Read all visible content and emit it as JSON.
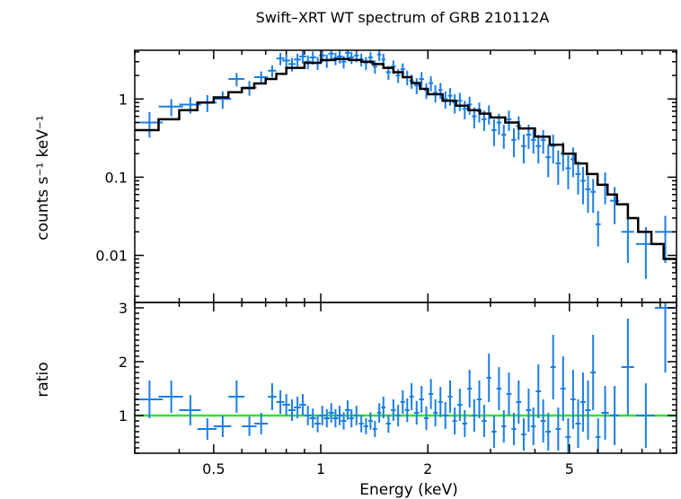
{
  "chart_data": {
    "type": "scatter",
    "title": "Swift–XRT WT spectrum of GRB 210112A",
    "xlabel": "Energy (keV)",
    "xscale": "log",
    "xlim": [
      0.3,
      10
    ],
    "x_ticks": [
      {
        "value": 0.5,
        "label": "0.5"
      },
      {
        "value": 1,
        "label": "1"
      },
      {
        "value": 2,
        "label": "2"
      },
      {
        "value": 5,
        "label": "5"
      }
    ],
    "panels": [
      {
        "name": "spectrum",
        "ylabel": "counts s⁻¹ keV⁻¹",
        "yscale": "log",
        "ylim": [
          0.0025,
          4.2
        ],
        "y_ticks": [
          {
            "value": 1,
            "label": "1"
          },
          {
            "value": 0.1,
            "label": "0.1"
          },
          {
            "value": 0.01,
            "label": "0.01"
          }
        ],
        "data_color": "#1a7ee6",
        "model_color": "#000000",
        "data": [
          [
            0.33,
            0.03,
            0.5,
            0.18
          ],
          [
            0.38,
            0.03,
            0.8,
            0.2
          ],
          [
            0.43,
            0.03,
            0.85,
            0.2
          ],
          [
            0.48,
            0.03,
            0.9,
            0.22
          ],
          [
            0.53,
            0.03,
            1.0,
            0.25
          ],
          [
            0.58,
            0.03,
            1.8,
            0.35
          ],
          [
            0.63,
            0.03,
            1.4,
            0.3
          ],
          [
            0.68,
            0.03,
            1.9,
            0.35
          ],
          [
            0.73,
            0.02,
            2.3,
            0.4
          ],
          [
            0.77,
            0.02,
            3.3,
            0.6
          ],
          [
            0.8,
            0.02,
            3.1,
            0.6
          ],
          [
            0.83,
            0.02,
            2.8,
            0.55
          ],
          [
            0.86,
            0.02,
            3.2,
            0.6
          ],
          [
            0.89,
            0.02,
            3.5,
            0.65
          ],
          [
            0.92,
            0.02,
            3.0,
            0.6
          ],
          [
            0.95,
            0.02,
            3.4,
            0.65
          ],
          [
            0.98,
            0.02,
            2.9,
            0.55
          ],
          [
            1.01,
            0.02,
            3.6,
            0.65
          ],
          [
            1.04,
            0.02,
            3.1,
            0.6
          ],
          [
            1.07,
            0.02,
            3.8,
            0.7
          ],
          [
            1.1,
            0.02,
            3.3,
            0.6
          ],
          [
            1.13,
            0.02,
            3.5,
            0.65
          ],
          [
            1.16,
            0.02,
            3.0,
            0.55
          ],
          [
            1.19,
            0.02,
            3.9,
            0.7
          ],
          [
            1.22,
            0.02,
            3.4,
            0.6
          ],
          [
            1.26,
            0.02,
            3.6,
            0.65
          ],
          [
            1.3,
            0.02,
            3.2,
            0.6
          ],
          [
            1.34,
            0.02,
            2.9,
            0.55
          ],
          [
            1.38,
            0.02,
            3.4,
            0.6
          ],
          [
            1.42,
            0.02,
            2.6,
            0.5
          ],
          [
            1.46,
            0.02,
            3.7,
            0.65
          ],
          [
            1.5,
            0.02,
            3.2,
            0.6
          ],
          [
            1.55,
            0.025,
            2.2,
            0.45
          ],
          [
            1.6,
            0.025,
            2.6,
            0.5
          ],
          [
            1.65,
            0.025,
            2.0,
            0.4
          ],
          [
            1.7,
            0.025,
            2.4,
            0.45
          ],
          [
            1.75,
            0.025,
            1.9,
            0.4
          ],
          [
            1.8,
            0.025,
            1.7,
            0.35
          ],
          [
            1.86,
            0.03,
            1.5,
            0.35
          ],
          [
            1.92,
            0.03,
            1.8,
            0.4
          ],
          [
            1.98,
            0.03,
            1.3,
            0.3
          ],
          [
            2.04,
            0.03,
            1.6,
            0.35
          ],
          [
            2.1,
            0.03,
            1.2,
            0.3
          ],
          [
            2.17,
            0.03,
            1.3,
            0.3
          ],
          [
            2.24,
            0.035,
            1.0,
            0.25
          ],
          [
            2.31,
            0.035,
            1.1,
            0.28
          ],
          [
            2.38,
            0.035,
            0.9,
            0.25
          ],
          [
            2.46,
            0.04,
            0.95,
            0.25
          ],
          [
            2.54,
            0.04,
            0.75,
            0.2
          ],
          [
            2.62,
            0.04,
            0.85,
            0.22
          ],
          [
            2.7,
            0.04,
            0.6,
            0.18
          ],
          [
            2.79,
            0.045,
            0.7,
            0.2
          ],
          [
            2.88,
            0.045,
            0.55,
            0.16
          ],
          [
            2.97,
            0.045,
            0.65,
            0.18
          ],
          [
            3.07,
            0.05,
            0.4,
            0.15
          ],
          [
            3.17,
            0.05,
            0.5,
            0.15
          ],
          [
            3.27,
            0.05,
            0.35,
            0.12
          ],
          [
            3.38,
            0.055,
            0.55,
            0.16
          ],
          [
            3.49,
            0.055,
            0.3,
            0.12
          ],
          [
            3.6,
            0.06,
            0.45,
            0.15
          ],
          [
            3.72,
            0.06,
            0.25,
            0.1
          ],
          [
            3.84,
            0.065,
            0.35,
            0.12
          ],
          [
            3.96,
            0.065,
            0.3,
            0.1
          ],
          [
            4.09,
            0.07,
            0.25,
            0.1
          ],
          [
            4.22,
            0.07,
            0.3,
            0.1
          ],
          [
            4.36,
            0.075,
            0.18,
            0.08
          ],
          [
            4.5,
            0.075,
            0.25,
            0.1
          ],
          [
            4.65,
            0.08,
            0.15,
            0.07
          ],
          [
            4.8,
            0.08,
            0.2,
            0.08
          ],
          [
            4.96,
            0.085,
            0.13,
            0.06
          ],
          [
            5.12,
            0.085,
            0.17,
            0.07
          ],
          [
            5.29,
            0.09,
            0.11,
            0.05
          ],
          [
            5.46,
            0.09,
            0.09,
            0.045
          ],
          [
            5.64,
            0.1,
            0.07,
            0.035
          ],
          [
            5.83,
            0.1,
            0.065,
            0.03
          ],
          [
            6.02,
            0.1,
            0.025,
            0.012
          ],
          [
            6.3,
            0.15,
            0.08,
            0.035
          ],
          [
            6.7,
            0.2,
            0.05,
            0.025
          ],
          [
            7.3,
            0.3,
            0.02,
            0.012
          ],
          [
            8.2,
            0.5,
            0.014,
            0.009
          ],
          [
            9.3,
            0.6,
            0.02,
            0.012
          ]
        ],
        "model": [
          [
            0.3,
            0.4
          ],
          [
            0.35,
            0.55
          ],
          [
            0.4,
            0.72
          ],
          [
            0.45,
            0.9
          ],
          [
            0.5,
            1.05
          ],
          [
            0.55,
            1.22
          ],
          [
            0.6,
            1.38
          ],
          [
            0.65,
            1.58
          ],
          [
            0.7,
            1.8
          ],
          [
            0.75,
            2.1
          ],
          [
            0.8,
            2.5
          ],
          [
            0.9,
            2.9
          ],
          [
            1.0,
            3.15
          ],
          [
            1.1,
            3.25
          ],
          [
            1.2,
            3.15
          ],
          [
            1.3,
            3.0
          ],
          [
            1.4,
            2.8
          ],
          [
            1.5,
            2.5
          ],
          [
            1.6,
            2.2
          ],
          [
            1.7,
            1.9
          ],
          [
            1.8,
            1.6
          ],
          [
            1.9,
            1.35
          ],
          [
            2.0,
            1.15
          ],
          [
            2.2,
            0.95
          ],
          [
            2.4,
            0.82
          ],
          [
            2.6,
            0.72
          ],
          [
            2.8,
            0.65
          ],
          [
            3.0,
            0.58
          ],
          [
            3.3,
            0.5
          ],
          [
            3.6,
            0.42
          ],
          [
            4.0,
            0.33
          ],
          [
            4.4,
            0.26
          ],
          [
            4.8,
            0.2
          ],
          [
            5.2,
            0.15
          ],
          [
            5.6,
            0.11
          ],
          [
            6.0,
            0.08
          ],
          [
            6.4,
            0.06
          ],
          [
            6.8,
            0.045
          ],
          [
            7.3,
            0.03
          ],
          [
            7.8,
            0.02
          ],
          [
            8.5,
            0.014
          ],
          [
            9.2,
            0.009
          ],
          [
            10,
            0.006
          ]
        ]
      },
      {
        "name": "ratio",
        "ylabel": "ratio",
        "yscale": "linear",
        "ylim": [
          0.3,
          3.1
        ],
        "y_ticks": [
          {
            "value": 1,
            "label": "1"
          },
          {
            "value": 2,
            "label": "2"
          },
          {
            "value": 3,
            "label": "3"
          }
        ],
        "reference_line": {
          "value": 1,
          "color": "#33e033"
        },
        "data": [
          [
            0.33,
            0.03,
            1.3,
            0.35
          ],
          [
            0.38,
            0.03,
            1.35,
            0.3
          ],
          [
            0.43,
            0.03,
            1.1,
            0.28
          ],
          [
            0.48,
            0.03,
            0.75,
            0.2
          ],
          [
            0.53,
            0.03,
            0.8,
            0.2
          ],
          [
            0.58,
            0.03,
            1.35,
            0.3
          ],
          [
            0.63,
            0.03,
            0.8,
            0.18
          ],
          [
            0.68,
            0.03,
            0.85,
            0.2
          ],
          [
            0.73,
            0.02,
            1.35,
            0.25
          ],
          [
            0.77,
            0.02,
            1.25,
            0.22
          ],
          [
            0.8,
            0.02,
            1.2,
            0.2
          ],
          [
            0.83,
            0.02,
            1.1,
            0.2
          ],
          [
            0.86,
            0.02,
            1.15,
            0.2
          ],
          [
            0.89,
            0.02,
            1.2,
            0.2
          ],
          [
            0.92,
            0.02,
            1.0,
            0.18
          ],
          [
            0.95,
            0.02,
            0.95,
            0.18
          ],
          [
            0.98,
            0.02,
            0.85,
            0.16
          ],
          [
            1.01,
            0.02,
            1.0,
            0.18
          ],
          [
            1.04,
            0.02,
            0.95,
            0.17
          ],
          [
            1.07,
            0.02,
            1.05,
            0.18
          ],
          [
            1.1,
            0.02,
            0.95,
            0.17
          ],
          [
            1.13,
            0.02,
            1.0,
            0.18
          ],
          [
            1.16,
            0.02,
            0.9,
            0.16
          ],
          [
            1.19,
            0.02,
            1.1,
            0.18
          ],
          [
            1.22,
            0.02,
            0.95,
            0.17
          ],
          [
            1.26,
            0.02,
            1.0,
            0.18
          ],
          [
            1.3,
            0.02,
            0.85,
            0.16
          ],
          [
            1.34,
            0.02,
            0.8,
            0.15
          ],
          [
            1.38,
            0.02,
            0.9,
            0.16
          ],
          [
            1.42,
            0.02,
            0.75,
            0.15
          ],
          [
            1.46,
            0.02,
            1.05,
            0.18
          ],
          [
            1.5,
            0.02,
            1.15,
            0.2
          ],
          [
            1.55,
            0.025,
            0.85,
            0.17
          ],
          [
            1.6,
            0.025,
            1.1,
            0.2
          ],
          [
            1.65,
            0.025,
            1.0,
            0.2
          ],
          [
            1.7,
            0.025,
            1.25,
            0.22
          ],
          [
            1.75,
            0.025,
            1.1,
            0.22
          ],
          [
            1.8,
            0.025,
            1.35,
            0.25
          ],
          [
            1.86,
            0.03,
            1.05,
            0.22
          ],
          [
            1.92,
            0.03,
            1.3,
            0.25
          ],
          [
            1.98,
            0.03,
            0.95,
            0.22
          ],
          [
            2.04,
            0.03,
            1.4,
            0.28
          ],
          [
            2.1,
            0.03,
            1.05,
            0.25
          ],
          [
            2.17,
            0.03,
            1.25,
            0.28
          ],
          [
            2.24,
            0.035,
            1.0,
            0.25
          ],
          [
            2.31,
            0.035,
            1.35,
            0.3
          ],
          [
            2.38,
            0.035,
            0.9,
            0.25
          ],
          [
            2.46,
            0.04,
            1.2,
            0.3
          ],
          [
            2.54,
            0.04,
            0.85,
            0.25
          ],
          [
            2.62,
            0.04,
            1.5,
            0.35
          ],
          [
            2.7,
            0.04,
            1.0,
            0.3
          ],
          [
            2.79,
            0.045,
            1.3,
            0.35
          ],
          [
            2.88,
            0.045,
            0.9,
            0.3
          ],
          [
            2.97,
            0.045,
            1.7,
            0.45
          ],
          [
            3.07,
            0.05,
            0.7,
            0.3
          ],
          [
            3.17,
            0.05,
            1.5,
            0.4
          ],
          [
            3.27,
            0.05,
            0.8,
            0.3
          ],
          [
            3.38,
            0.055,
            1.4,
            0.4
          ],
          [
            3.49,
            0.055,
            0.75,
            0.3
          ],
          [
            3.6,
            0.06,
            1.25,
            0.4
          ],
          [
            3.72,
            0.06,
            0.65,
            0.3
          ],
          [
            3.84,
            0.065,
            1.1,
            0.4
          ],
          [
            3.96,
            0.065,
            0.8,
            0.35
          ],
          [
            4.09,
            0.07,
            1.45,
            0.5
          ],
          [
            4.22,
            0.07,
            0.9,
            0.4
          ],
          [
            4.36,
            0.075,
            0.7,
            0.35
          ],
          [
            4.5,
            0.075,
            1.9,
            0.6
          ],
          [
            4.65,
            0.08,
            0.75,
            0.4
          ],
          [
            4.8,
            0.08,
            1.5,
            0.6
          ],
          [
            4.96,
            0.085,
            0.6,
            0.35
          ],
          [
            5.12,
            0.085,
            1.3,
            0.55
          ],
          [
            5.29,
            0.09,
            0.85,
            0.45
          ],
          [
            5.46,
            0.09,
            1.25,
            0.55
          ],
          [
            5.64,
            0.1,
            1.1,
            0.55
          ],
          [
            5.83,
            0.1,
            1.8,
            0.7
          ],
          [
            6.02,
            0.1,
            0.6,
            0.35
          ],
          [
            6.3,
            0.15,
            1.05,
            0.5
          ],
          [
            6.7,
            0.2,
            1.0,
            0.55
          ],
          [
            7.3,
            0.3,
            1.9,
            0.9
          ],
          [
            8.2,
            0.5,
            1.0,
            0.6
          ],
          [
            9.3,
            0.6,
            3.0,
            1.2
          ]
        ]
      }
    ]
  }
}
